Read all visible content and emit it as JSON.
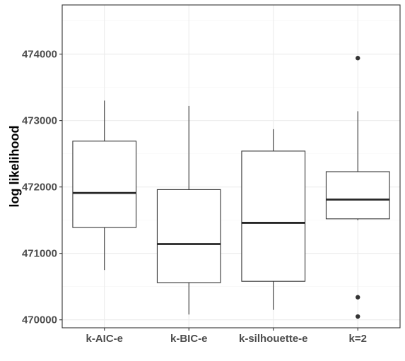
{
  "chart_data": {
    "type": "box",
    "title": "",
    "xlabel": "",
    "ylabel": "log likelihood",
    "ylim": [
      469880,
      474740
    ],
    "yticks": [
      470000,
      471000,
      472000,
      473000,
      474000
    ],
    "ytick_labels": [
      "470000",
      "471000",
      "472000",
      "473000",
      "474000"
    ],
    "categories": [
      "k-AIC-e",
      "k-BIC-e",
      "k-silhouette-e",
      "k=2"
    ],
    "boxes": [
      {
        "category": "k-AIC-e",
        "whisker_low": 470750,
        "q1": 471390,
        "median": 471910,
        "q3": 472690,
        "whisker_high": 473300,
        "outliers": []
      },
      {
        "category": "k-BIC-e",
        "whisker_low": 470080,
        "q1": 470560,
        "median": 471140,
        "q3": 471960,
        "whisker_high": 473220,
        "outliers": []
      },
      {
        "category": "k-silhouette-e",
        "whisker_low": 470150,
        "q1": 470580,
        "median": 471460,
        "q3": 472540,
        "whisker_high": 472870,
        "outliers": []
      },
      {
        "category": "k=2",
        "whisker_low": 471500,
        "q1": 471520,
        "median": 471810,
        "q3": 472230,
        "whisker_high": 473140,
        "outliers": [
          473940,
          470340,
          470050
        ]
      }
    ],
    "grid": true,
    "legend": "none",
    "colors": {
      "panel_border": "#333333",
      "grid_major": "#ebebeb",
      "grid_minor": "#f5f5f5",
      "box_line": "#333333",
      "median": "#262626",
      "tick_text": "#4d4d4d"
    }
  }
}
